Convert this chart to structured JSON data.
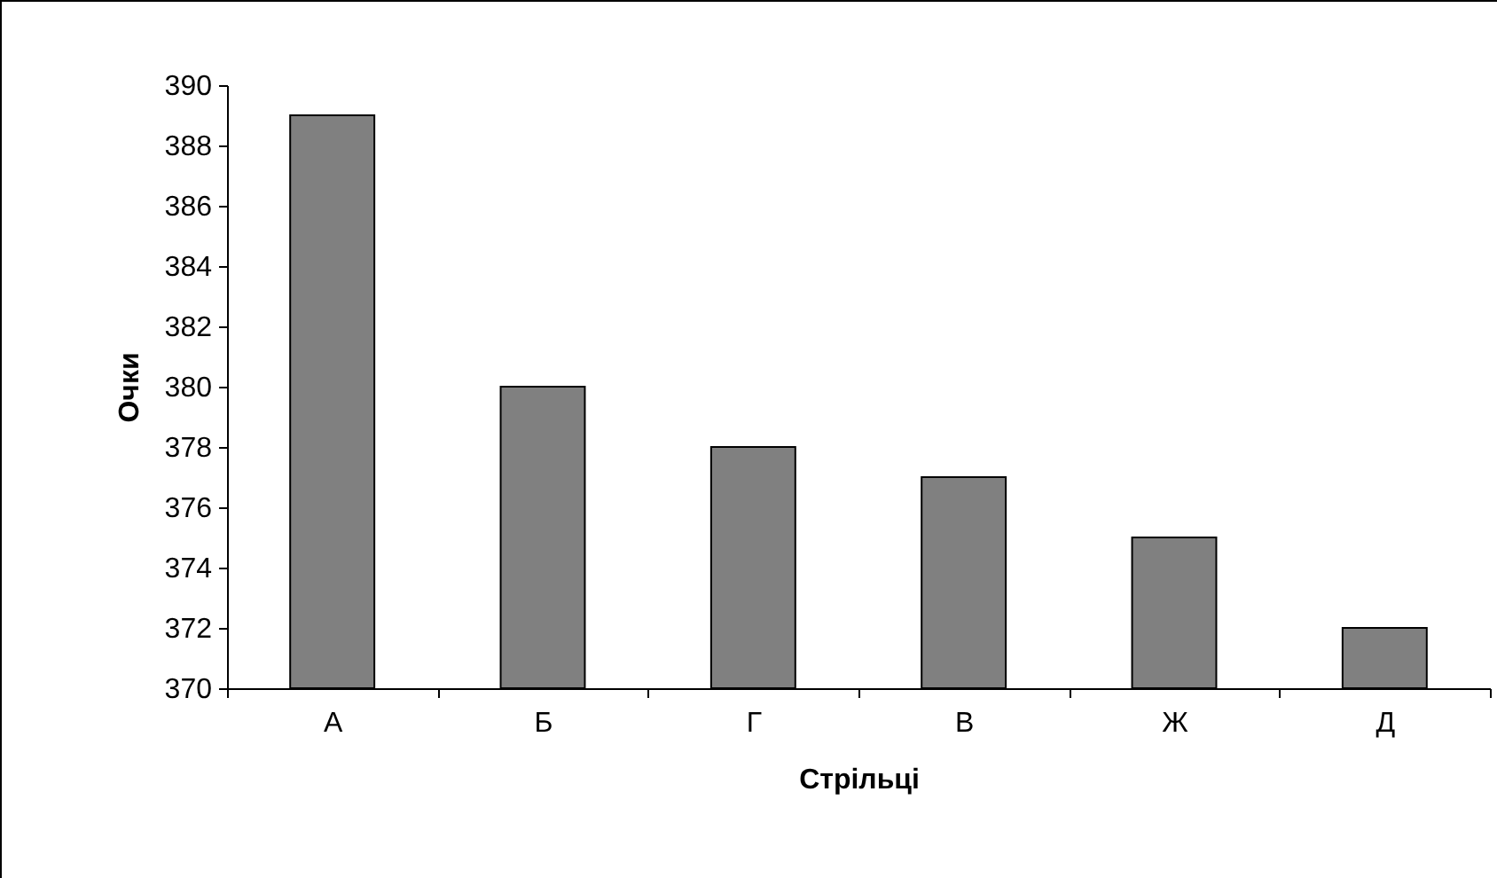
{
  "chart_data": {
    "type": "bar",
    "xlabel": "Стрільці",
    "ylabel": "Очки",
    "categories": [
      "А",
      "Б",
      "Г",
      "В",
      "Ж",
      "Д"
    ],
    "values": [
      389,
      380,
      378,
      377,
      375,
      372
    ],
    "color": "#808080",
    "ylim": [
      370,
      390
    ],
    "yticks": [
      370,
      372,
      374,
      376,
      378,
      380,
      382,
      384,
      386,
      388,
      390
    ],
    "grid": false
  }
}
